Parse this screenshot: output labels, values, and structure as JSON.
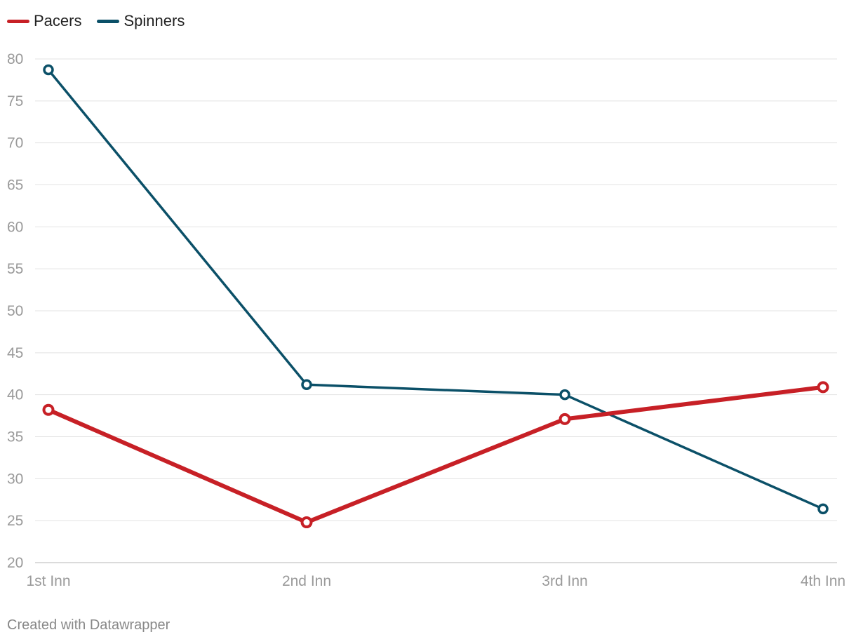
{
  "chart_data": {
    "type": "line",
    "categories": [
      "1st Inn",
      "2nd Inn",
      "3rd Inn",
      "4th Inn"
    ],
    "series": [
      {
        "name": "Pacers",
        "values": [
          38.2,
          24.8,
          37.1,
          40.9
        ],
        "color": "#c72026"
      },
      {
        "name": "Spinners",
        "values": [
          78.7,
          41.2,
          40.0,
          26.4
        ],
        "color": "#0b5068"
      }
    ],
    "yticks": [
      20,
      25,
      30,
      35,
      40,
      45,
      50,
      55,
      60,
      65,
      70,
      75,
      80
    ],
    "ylim": [
      20,
      80
    ],
    "grid": true,
    "legend": "top-left",
    "title": "",
    "xlabel": "",
    "ylabel": ""
  },
  "legend": {
    "pacers_label": "Pacers",
    "spinners_label": "Spinners",
    "pacers_color": "#c72026",
    "spinners_color": "#0b5068"
  },
  "footer": {
    "credit": "Created with Datawrapper"
  }
}
